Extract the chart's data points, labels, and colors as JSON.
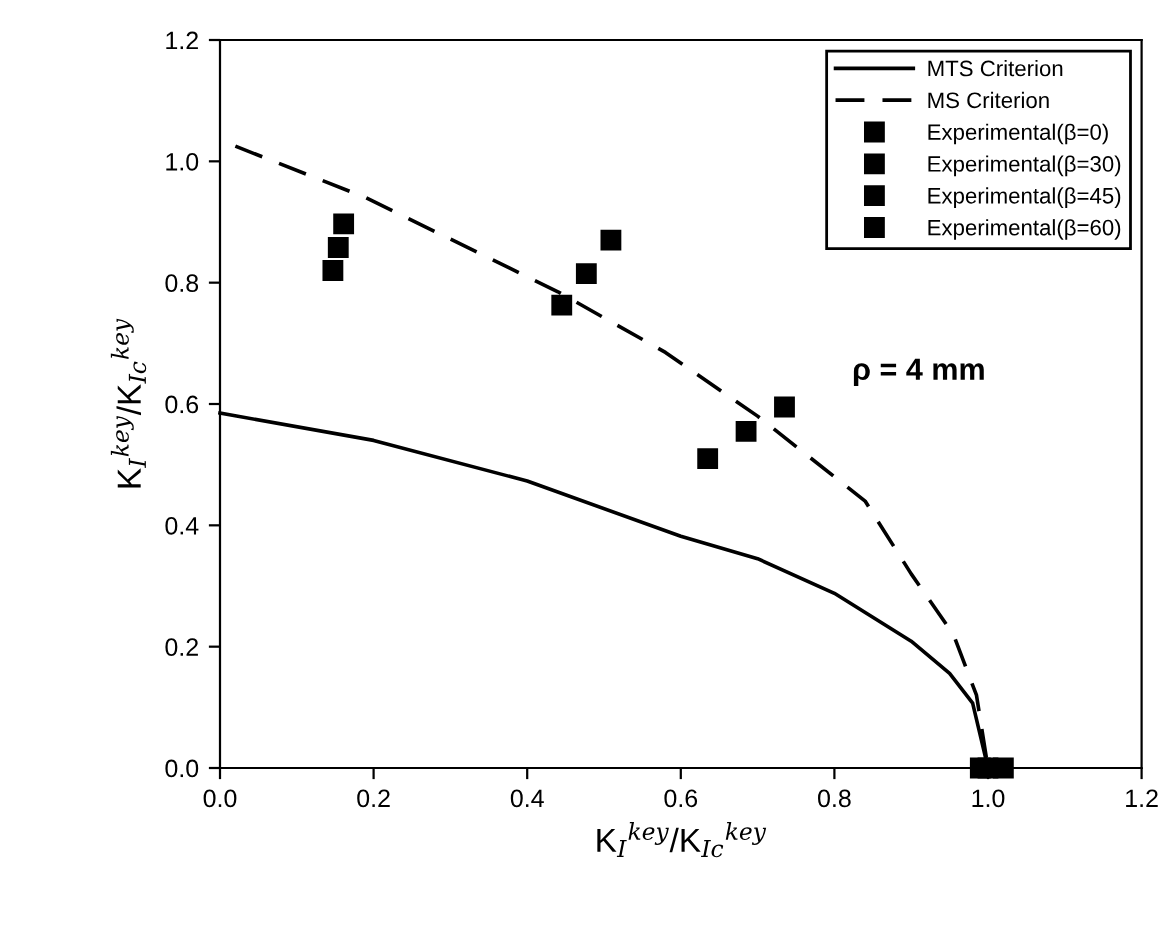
{
  "chart_data": {
    "type": "line",
    "xlabel": "K$_{I}$$^{key}$/K$_{Ic}$$^{key}$",
    "ylabel": "K$_{I}$$^{key}$/K$_{Ic}$$^{key}$",
    "annotations": [
      "ρ = 4 mm"
    ],
    "series": [
      {
        "name": "MTS Criterion",
        "color": "#000000",
        "line_style": "solid",
        "marker": "none",
        "x": [
          0,
          0.2,
          0.4,
          0.6,
          0.7,
          0.8,
          0.9,
          0.95,
          0.98,
          1.0
        ],
        "values": [
          0.585,
          0.54,
          0.473,
          0.382,
          0.345,
          0.288,
          0.209,
          0.156,
          0.107,
          0
        ]
      },
      {
        "name": "MS Criterion",
        "color": "#000000",
        "line_style": "dashed",
        "marker": "none",
        "x": [
          0.02,
          0.19,
          0.44,
          0.58,
          0.7,
          0.84,
          0.9,
          0.955,
          0.985,
          1.0
        ],
        "values": [
          1.025,
          0.94,
          0.785,
          0.685,
          0.58,
          0.44,
          0.32,
          0.22,
          0.12,
          0
        ]
      },
      {
        "name": "Experimental(β=0)",
        "type": "scatter",
        "color": "#000000",
        "marker": "square",
        "x": [
          0.99,
          1.0,
          1.02
        ],
        "values": [
          0,
          0,
          0
        ]
      },
      {
        "name": "Experimental(β=30)",
        "type": "scatter",
        "color": "#000000",
        "marker": "square",
        "x": [
          0.635,
          0.685,
          0.735
        ],
        "values": [
          0.51,
          0.555,
          0.595
        ]
      },
      {
        "name": "Experimental(β=45)",
        "type": "scatter",
        "color": "#000000",
        "marker": "square",
        "x": [
          0.445,
          0.477,
          0.509
        ],
        "values": [
          0.763,
          0.815,
          0.87
        ]
      },
      {
        "name": "Experimental(β=60)",
        "type": "scatter",
        "color": "#000000",
        "marker": "square",
        "x": [
          0.147,
          0.154,
          0.161
        ],
        "values": [
          0.82,
          0.858,
          0.897
        ]
      }
    ],
    "xlim": [
      0,
      1.2
    ],
    "ylim": [
      0,
      1.2
    ],
    "xticks": [
      {
        "value": 0,
        "label": "0.0"
      },
      {
        "value": 0.2,
        "label": "0.2"
      },
      {
        "value": 0.4,
        "label": "0.4"
      },
      {
        "value": 0.6,
        "label": "0.6"
      },
      {
        "value": 0.8,
        "label": "0.8"
      },
      {
        "value": 1.0,
        "label": "1.0"
      },
      {
        "value": 1.2,
        "label": "1.2"
      }
    ],
    "yticks": [
      {
        "value": 0,
        "label": "0.0"
      },
      {
        "value": 0.2,
        "label": "0.2"
      },
      {
        "value": 0.4,
        "label": "0.4"
      },
      {
        "value": 0.6,
        "label": "0.6"
      },
      {
        "value": 0.8,
        "label": "0.8"
      },
      {
        "value": 1.0,
        "label": "1.0"
      },
      {
        "value": 1.2,
        "label": "1.2"
      }
    ],
    "grid": false,
    "legend": "top right"
  }
}
